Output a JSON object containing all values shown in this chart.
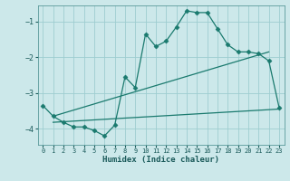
{
  "xlabel": "Humidex (Indice chaleur)",
  "ylabel": "",
  "bg_color": "#cce8ea",
  "grid_color": "#9ecdd0",
  "line_color": "#1a7a6e",
  "xlim": [
    -0.5,
    23.5
  ],
  "ylim": [
    -4.45,
    -0.55
  ],
  "yticks": [
    -4,
    -3,
    -2,
    -1
  ],
  "xticks": [
    0,
    1,
    2,
    3,
    4,
    5,
    6,
    7,
    8,
    9,
    10,
    11,
    12,
    13,
    14,
    15,
    16,
    17,
    18,
    19,
    20,
    21,
    22,
    23
  ],
  "line1_x": [
    0,
    1,
    2,
    3,
    4,
    5,
    6,
    7,
    8,
    9,
    10,
    11,
    12,
    13,
    14,
    15,
    16,
    17,
    18,
    19,
    20,
    21,
    22,
    23
  ],
  "line1_y": [
    -3.35,
    -3.65,
    -3.82,
    -3.95,
    -3.95,
    -4.05,
    -4.2,
    -3.9,
    -2.55,
    -2.85,
    -1.35,
    -1.7,
    -1.55,
    -1.15,
    -0.7,
    -0.75,
    -0.75,
    -1.2,
    -1.65,
    -1.85,
    -1.85,
    -1.9,
    -2.1,
    -3.4
  ],
  "line2_x": [
    1,
    22
  ],
  "line2_y": [
    -3.65,
    -1.85
  ],
  "line3_x": [
    1,
    23
  ],
  "line3_y": [
    -3.82,
    -3.45
  ],
  "marker": "D",
  "markersize": 2.5
}
